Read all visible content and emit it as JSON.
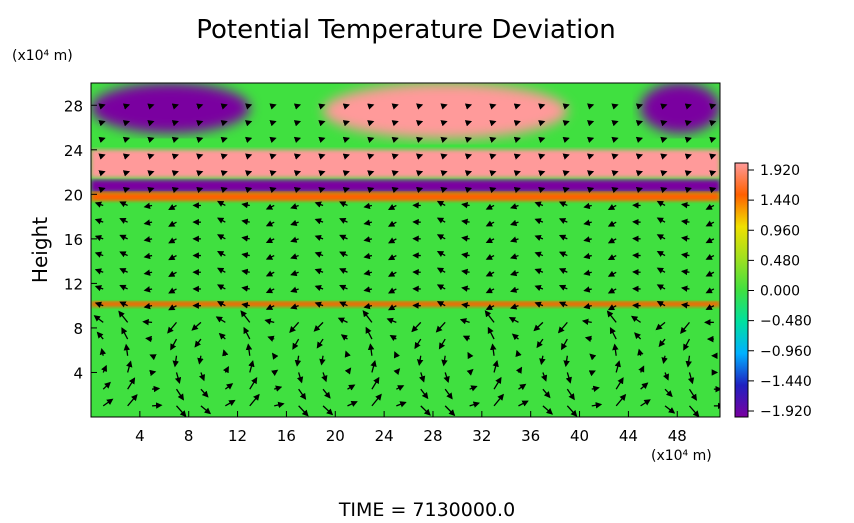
{
  "chart_data": {
    "type": "heatmap",
    "title": "Potential Temperature Deviation",
    "ylabel": "Height",
    "y_unit_label": "(x10⁴ m)",
    "x_unit_label": "(x10⁴ m)",
    "footer": "TIME = 7130000.0",
    "xlim": [
      0,
      51.5
    ],
    "ylim": [
      0,
      30
    ],
    "x_ticks": [
      4,
      8,
      12,
      16,
      20,
      24,
      28,
      32,
      36,
      40,
      44,
      48
    ],
    "y_ticks": [
      4,
      8,
      12,
      16,
      20,
      24,
      28
    ],
    "colorbar": {
      "ticks": [
        "1.920",
        "1.440",
        "0.960",
        "0.480",
        "0.000",
        "−0.480",
        "−0.960",
        "−1.440",
        "−1.920"
      ],
      "range": [
        -1.92,
        1.92
      ],
      "stops": [
        "#7a00a0",
        "#2020c0",
        "#00b0ff",
        "#00e0a0",
        "#40e040",
        "#a0e020",
        "#f0e000",
        "#ff6000",
        "#ff9a9a"
      ]
    },
    "regions": [
      {
        "label": "top-left low anomaly",
        "x": [
          0,
          13
        ],
        "y": [
          25.5,
          30
        ],
        "value": -1.92
      },
      {
        "label": "top-center high anomaly",
        "x": [
          19,
          39
        ],
        "y": [
          25,
          30
        ],
        "value": 1.92
      },
      {
        "label": "top-right low anomaly",
        "x": [
          45,
          51.5
        ],
        "y": [
          25.5,
          30
        ],
        "value": -1.92
      },
      {
        "label": "upper band high",
        "x": [
          0,
          51.5
        ],
        "y": [
          21.5,
          24
        ],
        "value": 1.9
      },
      {
        "label": "thin negative band",
        "x": [
          0,
          51.5
        ],
        "y": [
          20.2,
          21.3
        ],
        "value": -1.9
      },
      {
        "label": "thin positive band",
        "x": [
          0,
          51.5
        ],
        "y": [
          19.3,
          20.2
        ],
        "value": 1.6
      },
      {
        "label": "mid layer",
        "x": [
          0,
          51.5
        ],
        "y": [
          10.5,
          19.3
        ],
        "value": 0.1
      },
      {
        "label": "inversion line",
        "x": [
          0,
          51.5
        ],
        "y": [
          9.8,
          10.4
        ],
        "value": 1.2
      },
      {
        "label": "lower layer",
        "x": [
          0,
          51.5
        ],
        "y": [
          0,
          9.8
        ],
        "value": 0.05
      }
    ]
  }
}
